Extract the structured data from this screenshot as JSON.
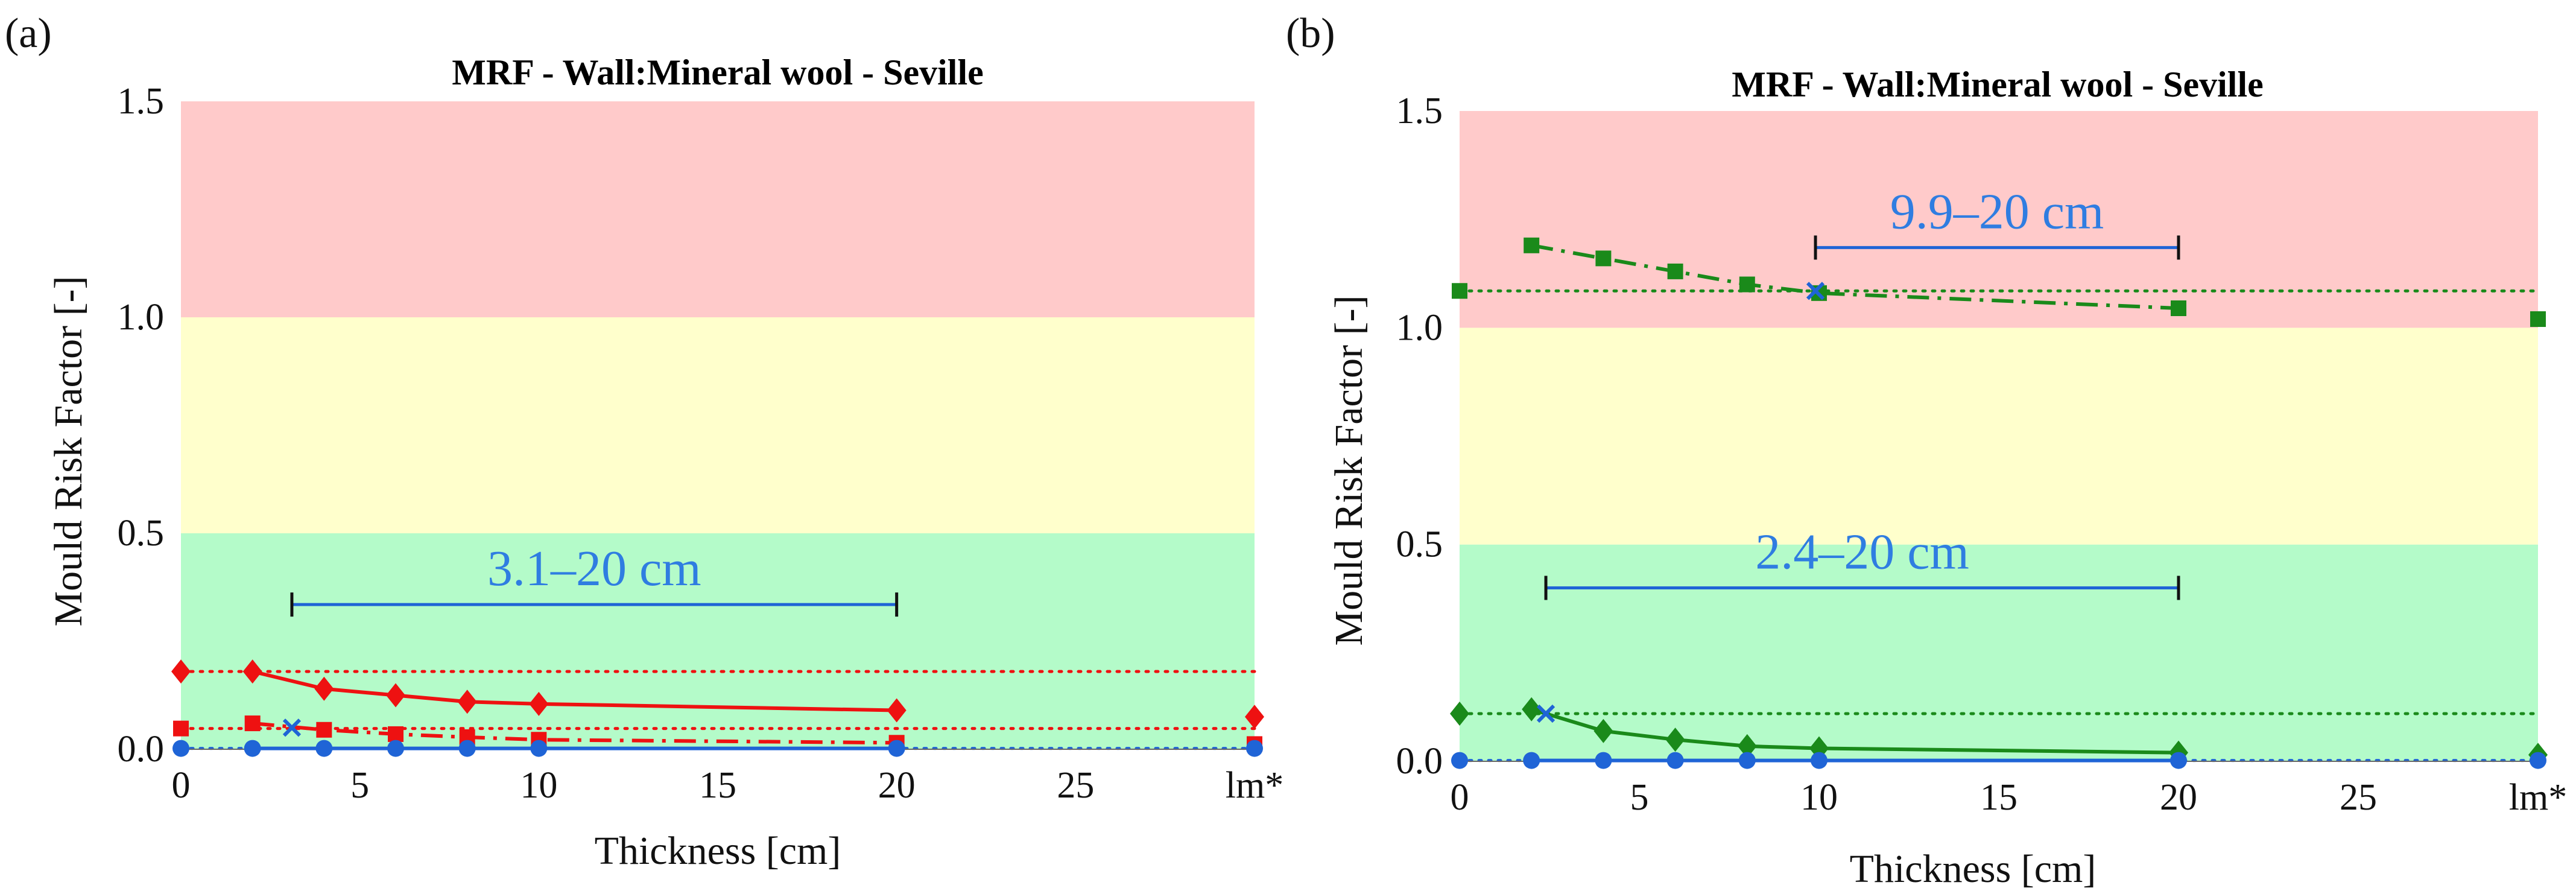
{
  "colors": {
    "zone_red": "#ffcaca",
    "zone_yellow": "#ffffcc",
    "zone_green": "#b4fbc9",
    "blue": "#1f64d6",
    "label_blue": "#2f7de1",
    "red": "#ee1111",
    "green": "#1a8a1a"
  },
  "chart_data": [
    {
      "panel": "(a)",
      "type": "line",
      "title": "MRF - Wall:Mineral wool - Seville",
      "xlabel": "Thickness [cm]",
      "ylabel": "Mould Risk Factor [-]",
      "xlim": [
        0,
        30
      ],
      "ylim": [
        0,
        1.5
      ],
      "x_ticks": [
        "0",
        "5",
        "10",
        "15",
        "20",
        "25",
        "lm*"
      ],
      "y_ticks": [
        "0.0",
        "0.5",
        "1.0",
        "1.5"
      ],
      "zones": [
        {
          "from": 0,
          "to": 0.5,
          "color": "green"
        },
        {
          "from": 0.5,
          "to": 1.0,
          "color": "yellow"
        },
        {
          "from": 1.0,
          "to": 1.5,
          "color": "red"
        }
      ],
      "series": [
        {
          "color": "red",
          "marker": "diamond",
          "style": "solid",
          "x": [
            2,
            4,
            6,
            8,
            10,
            20
          ],
          "y": [
            0.18,
            0.14,
            0.125,
            0.11,
            0.105,
            0.09
          ],
          "ref_value": 0.18,
          "ref_style": "dotted",
          "lm_value": 0.075
        },
        {
          "color": "red",
          "marker": "square",
          "style": "dashdot",
          "x": [
            2,
            4,
            6,
            8,
            10,
            20
          ],
          "y": [
            0.06,
            0.045,
            0.035,
            0.028,
            0.022,
            0.015
          ],
          "ref_value": 0.048,
          "ref_style": "dotted",
          "lm_value": 0.012
        },
        {
          "color": "blue",
          "marker": "circle",
          "style": "solid",
          "x": [
            2,
            4,
            6,
            8,
            10,
            20
          ],
          "y": [
            0.002,
            0.002,
            0.002,
            0.002,
            0.002,
            0.002
          ],
          "ref_value": 0.002,
          "ref_style": "dotted",
          "lm_value": 0.002
        }
      ],
      "cross_markers": [
        {
          "x": 3.1,
          "y": 0.05
        }
      ],
      "ranges": [
        {
          "x_from": 3.1,
          "x_to": 20,
          "y": 0.335,
          "label": "3.1–20 cm"
        }
      ]
    },
    {
      "panel": "(b)",
      "type": "line",
      "title": "MRF - Wall:Mineral wool - Seville",
      "xlabel": "Thickness [cm]",
      "ylabel": "Mould Risk Factor [-]",
      "xlim": [
        0,
        30
      ],
      "ylim": [
        0,
        1.5
      ],
      "x_ticks": [
        "0",
        "5",
        "10",
        "15",
        "20",
        "25",
        "lm*"
      ],
      "y_ticks": [
        "0.0",
        "0.5",
        "1.0",
        "1.5"
      ],
      "zones": [
        {
          "from": 0,
          "to": 0.5,
          "color": "green"
        },
        {
          "from": 0.5,
          "to": 1.0,
          "color": "yellow"
        },
        {
          "from": 1.0,
          "to": 1.5,
          "color": "red"
        }
      ],
      "series": [
        {
          "color": "green",
          "marker": "square",
          "style": "dashdot",
          "x": [
            2,
            4,
            6,
            8,
            10,
            20
          ],
          "y": [
            1.19,
            1.16,
            1.13,
            1.1,
            1.08,
            1.045
          ],
          "ref_value": 1.085,
          "ref_style": "dotted",
          "lm_value": 1.02
        },
        {
          "color": "green",
          "marker": "diamond",
          "style": "solid",
          "x": [
            2,
            4,
            6,
            8,
            10,
            20
          ],
          "y": [
            0.12,
            0.07,
            0.05,
            0.035,
            0.03,
            0.02
          ],
          "ref_value": 0.11,
          "ref_style": "dotted",
          "lm_value": 0.015
        },
        {
          "color": "blue",
          "marker": "circle",
          "style": "solid",
          "x": [
            2,
            4,
            6,
            8,
            10,
            20
          ],
          "y": [
            0.002,
            0.002,
            0.002,
            0.002,
            0.002,
            0.002
          ],
          "ref_value": 0.002,
          "ref_style": "dotted",
          "lm_value": 0.002
        }
      ],
      "cross_markers": [
        {
          "x": 9.9,
          "y": 1.085
        },
        {
          "x": 2.4,
          "y": 0.11
        }
      ],
      "ranges": [
        {
          "x_from": 9.9,
          "x_to": 20,
          "y": 1.185,
          "label": "9.9–20 cm"
        },
        {
          "x_from": 2.4,
          "x_to": 20,
          "y": 0.4,
          "label": "2.4–20 cm"
        }
      ]
    }
  ]
}
